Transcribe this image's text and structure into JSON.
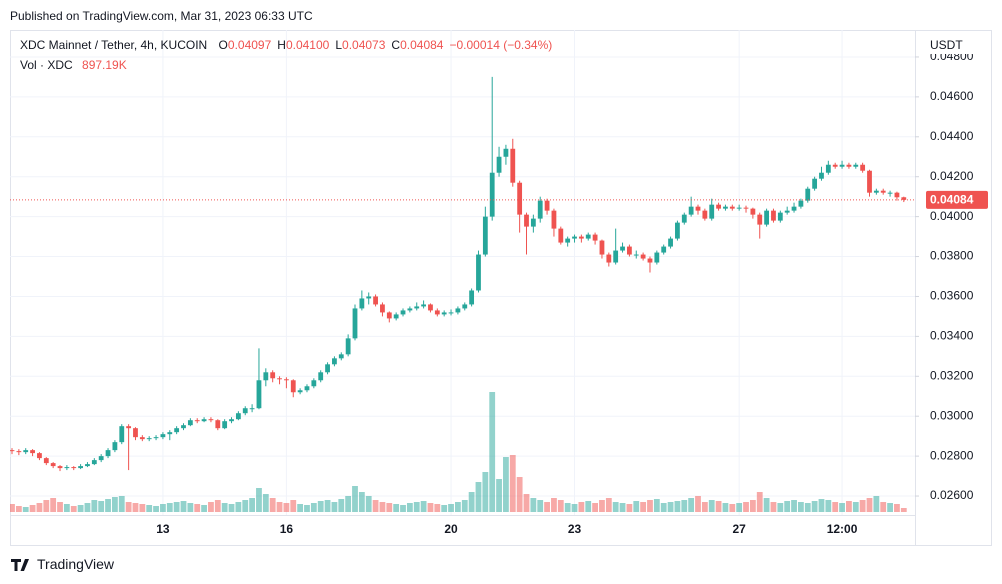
{
  "chart_data": {
    "type": "candlestick",
    "source": "Published on TradingView.com, Mar 31, 2023 06:33 UTC",
    "title": "XDC Mainnet / Tether, 4h, KUCOIN",
    "legend": [
      {
        "key": "O",
        "value": "0.04097"
      },
      {
        "key": "H",
        "value": "0.04100"
      },
      {
        "key": "L",
        "value": "0.04073"
      },
      {
        "key": "C",
        "value": "0.04084"
      }
    ],
    "change": "−0.00014 (−0.34%)",
    "currency": "USDT",
    "brand": "TradingView",
    "up_color": "#26a69a",
    "down_color": "#ef5350",
    "grid": true,
    "ylim": [
      0.0252,
      0.0488
    ],
    "yticks": [
      {
        "value": 0.026,
        "label": "0.02600"
      },
      {
        "value": 0.028,
        "label": "0.02800"
      },
      {
        "value": 0.03,
        "label": "0.03000"
      },
      {
        "value": 0.032,
        "label": "0.03200"
      },
      {
        "value": 0.034,
        "label": "0.03400"
      },
      {
        "value": 0.036,
        "label": "0.03600"
      },
      {
        "value": 0.038,
        "label": "0.03800"
      },
      {
        "value": 0.04,
        "label": "0.04000"
      },
      {
        "value": 0.042,
        "label": "0.04200"
      },
      {
        "value": 0.044,
        "label": "0.04400"
      },
      {
        "value": 0.046,
        "label": "0.04600"
      },
      {
        "value": 0.048,
        "label": "0.04800"
      }
    ],
    "categories": [
      null,
      null,
      null,
      null,
      null,
      null,
      null,
      null,
      null,
      null,
      null,
      null,
      null,
      null,
      null,
      null,
      null,
      null,
      null,
      null,
      null,
      null,
      "13",
      null,
      null,
      null,
      null,
      null,
      null,
      null,
      null,
      null,
      null,
      null,
      null,
      null,
      null,
      null,
      null,
      null,
      "16",
      null,
      null,
      null,
      null,
      null,
      null,
      null,
      null,
      null,
      null,
      null,
      null,
      null,
      null,
      null,
      null,
      null,
      null,
      null,
      null,
      null,
      null,
      null,
      "20",
      null,
      null,
      null,
      null,
      null,
      null,
      null,
      null,
      null,
      null,
      null,
      null,
      null,
      null,
      null,
      null,
      null,
      "23",
      null,
      null,
      null,
      null,
      null,
      null,
      null,
      null,
      null,
      null,
      null,
      null,
      null,
      null,
      null,
      null,
      null,
      null,
      null,
      null,
      null,
      null,
      null,
      "27",
      null,
      null,
      null,
      null,
      null,
      null,
      null,
      null,
      null,
      null,
      null,
      null,
      null,
      null,
      "12:00",
      null,
      null,
      null,
      null,
      null,
      null,
      null,
      null,
      null
    ],
    "open": [
      0.0283,
      0.02825,
      0.0282,
      0.0283,
      0.02815,
      0.0279,
      0.02765,
      0.0275,
      0.0274,
      0.02745,
      0.0274,
      0.0275,
      0.0276,
      0.0278,
      0.028,
      0.0283,
      0.0287,
      0.0295,
      0.0294,
      0.02895,
      0.02885,
      0.0289,
      0.02895,
      0.0291,
      0.0292,
      0.0294,
      0.02955,
      0.0298,
      0.02975,
      0.02985,
      0.0298,
      0.0294,
      0.02975,
      0.02985,
      0.03015,
      0.0304,
      0.0304,
      0.0318,
      0.0322,
      0.0319,
      0.03185,
      0.0318,
      0.0312,
      0.0313,
      0.0315,
      0.0318,
      0.0322,
      0.0326,
      0.0329,
      0.0331,
      0.0339,
      0.0354,
      0.0359,
      0.036,
      0.0356,
      0.0352,
      0.0349,
      0.0351,
      0.0353,
      0.0354,
      0.0355,
      0.0356,
      0.0353,
      0.0351,
      0.0352,
      0.0352,
      0.0354,
      0.0356,
      0.0363,
      0.0381,
      0.04,
      0.0422,
      0.043,
      0.0434,
      0.0417,
      0.0401,
      0.0395,
      0.0399,
      0.0408,
      0.0403,
      0.0394,
      0.0387,
      0.0389,
      0.039,
      0.0389,
      0.0391,
      0.0388,
      0.0381,
      0.0377,
      0.0383,
      0.0385,
      0.0381,
      0.0381,
      0.0379,
      0.0377,
      0.0382,
      0.0385,
      0.0389,
      0.0397,
      0.0401,
      0.0405,
      0.0403,
      0.0399,
      0.0406,
      0.0404,
      0.0405,
      0.0404,
      0.04045,
      0.0404,
      0.0401,
      0.0396,
      0.0403,
      0.0398,
      0.0402,
      0.0403,
      0.0405,
      0.0408,
      0.0414,
      0.0419,
      0.0422,
      0.0426,
      0.0425,
      0.0426,
      0.0425,
      0.0426,
      0.0423,
      0.0412,
      0.0413,
      0.0412,
      0.0412,
      0.04097
    ],
    "high": [
      0.0284,
      0.02835,
      0.0284,
      0.02835,
      0.0282,
      0.02795,
      0.0277,
      0.02755,
      0.02755,
      0.0275,
      0.0276,
      0.0277,
      0.0279,
      0.0281,
      0.0284,
      0.0288,
      0.0296,
      0.0296,
      0.02945,
      0.02905,
      0.029,
      0.02905,
      0.0292,
      0.0293,
      0.0295,
      0.02965,
      0.0299,
      0.0299,
      0.02995,
      0.02995,
      0.02985,
      0.02985,
      0.02995,
      0.03025,
      0.0305,
      0.0306,
      0.0334,
      0.0324,
      0.0323,
      0.032,
      0.03195,
      0.03185,
      0.0314,
      0.0316,
      0.0319,
      0.0323,
      0.0327,
      0.033,
      0.0332,
      0.0341,
      0.0356,
      0.0363,
      0.0362,
      0.0361,
      0.0357,
      0.03525,
      0.0352,
      0.0354,
      0.0355,
      0.0357,
      0.0358,
      0.03565,
      0.0354,
      0.0353,
      0.03535,
      0.0355,
      0.0357,
      0.0364,
      0.0383,
      0.0405,
      0.047,
      0.0435,
      0.0436,
      0.0439,
      0.0418,
      0.0402,
      0.0401,
      0.041,
      0.0409,
      0.0404,
      0.0395,
      0.039,
      0.0391,
      0.0391,
      0.0392,
      0.0392,
      0.03885,
      0.0382,
      0.0394,
      0.0387,
      0.0386,
      0.0383,
      0.0382,
      0.038,
      0.0383,
      0.0386,
      0.039,
      0.0398,
      0.0402,
      0.041,
      0.0406,
      0.0404,
      0.0409,
      0.0407,
      0.0406,
      0.0406,
      0.0406,
      0.04055,
      0.04045,
      0.0402,
      0.0404,
      0.0404,
      0.0403,
      0.0405,
      0.0407,
      0.0409,
      0.0415,
      0.042,
      0.0425,
      0.0428,
      0.0427,
      0.0428,
      0.0427,
      0.0427,
      0.0427,
      0.04235,
      0.0414,
      0.0414,
      0.0413,
      0.04125,
      0.041
    ],
    "low": [
      0.0281,
      0.02805,
      0.0281,
      0.028,
      0.0278,
      0.02755,
      0.0274,
      0.02725,
      0.0273,
      0.0273,
      0.02735,
      0.02745,
      0.02755,
      0.0277,
      0.0279,
      0.0282,
      0.0286,
      0.0273,
      0.0288,
      0.02875,
      0.02875,
      0.0288,
      0.02885,
      0.0288,
      0.0291,
      0.0293,
      0.0295,
      0.02965,
      0.0297,
      0.0297,
      0.0293,
      0.02935,
      0.02965,
      0.0298,
      0.03005,
      0.0302,
      0.03035,
      0.0315,
      0.0317,
      0.0316,
      0.0314,
      0.03095,
      0.0311,
      0.0312,
      0.0314,
      0.0317,
      0.0321,
      0.0325,
      0.0328,
      0.033,
      0.0338,
      0.0353,
      0.0356,
      0.0355,
      0.035,
      0.0347,
      0.0348,
      0.035,
      0.0352,
      0.0353,
      0.0354,
      0.0352,
      0.035,
      0.035,
      0.03505,
      0.0351,
      0.0353,
      0.0355,
      0.0362,
      0.038,
      0.0398,
      0.042,
      0.0426,
      0.0415,
      0.0392,
      0.0381,
      0.0392,
      0.0397,
      0.0401,
      0.039,
      0.0386,
      0.0385,
      0.0387,
      0.0387,
      0.0388,
      0.0386,
      0.0379,
      0.0375,
      0.0376,
      0.0382,
      0.038,
      0.0379,
      0.0378,
      0.0372,
      0.0376,
      0.0381,
      0.0384,
      0.0388,
      0.0396,
      0.04,
      0.0401,
      0.0398,
      0.0398,
      0.0403,
      0.0403,
      0.0403,
      0.0403,
      0.0402,
      0.0399,
      0.0389,
      0.0395,
      0.0397,
      0.0397,
      0.0401,
      0.0402,
      0.0404,
      0.0407,
      0.0413,
      0.0418,
      0.0421,
      0.0424,
      0.0424,
      0.0424,
      0.0424,
      0.0422,
      0.041,
      0.0411,
      0.0411,
      0.041,
      0.0408,
      0.04073
    ],
    "close": [
      0.02825,
      0.0282,
      0.0283,
      0.02815,
      0.0279,
      0.02765,
      0.0275,
      0.0274,
      0.02745,
      0.0274,
      0.0275,
      0.0276,
      0.0278,
      0.028,
      0.0283,
      0.0287,
      0.0295,
      0.0294,
      0.02895,
      0.02885,
      0.0289,
      0.02895,
      0.0291,
      0.0292,
      0.0294,
      0.02955,
      0.0298,
      0.02975,
      0.02985,
      0.0298,
      0.0294,
      0.02975,
      0.02985,
      0.03015,
      0.0304,
      0.0304,
      0.0318,
      0.0322,
      0.0319,
      0.03185,
      0.0318,
      0.0312,
      0.0313,
      0.0315,
      0.0318,
      0.0322,
      0.0326,
      0.0329,
      0.0331,
      0.0339,
      0.0354,
      0.0359,
      0.036,
      0.0356,
      0.0352,
      0.0349,
      0.0351,
      0.0353,
      0.0354,
      0.0355,
      0.0356,
      0.0353,
      0.0351,
      0.0352,
      0.0352,
      0.0354,
      0.0356,
      0.0363,
      0.0381,
      0.04,
      0.0422,
      0.043,
      0.0434,
      0.0417,
      0.0401,
      0.0395,
      0.0399,
      0.0408,
      0.0403,
      0.0394,
      0.0387,
      0.0389,
      0.039,
      0.0389,
      0.0391,
      0.0388,
      0.0381,
      0.0377,
      0.0383,
      0.0385,
      0.0381,
      0.0381,
      0.0379,
      0.0377,
      0.0382,
      0.0385,
      0.0389,
      0.0397,
      0.0401,
      0.0405,
      0.0403,
      0.0399,
      0.0406,
      0.0404,
      0.0405,
      0.0404,
      0.04045,
      0.0404,
      0.0401,
      0.0396,
      0.0403,
      0.0398,
      0.0402,
      0.0403,
      0.0405,
      0.0408,
      0.0414,
      0.0419,
      0.0422,
      0.0426,
      0.0425,
      0.0426,
      0.0425,
      0.0426,
      0.0423,
      0.0412,
      0.0413,
      0.0412,
      0.0412,
      0.04097,
      0.04084
    ],
    "volume": {
      "name": "Vol · XDC",
      "legend_value": "897.19K",
      "values": [
        1794400,
        1345800,
        1121500,
        1570100,
        2018700,
        2691600,
        3140200,
        2243000,
        1794400,
        1345800,
        1570100,
        2018700,
        2691600,
        2467300,
        2915900,
        3364500,
        3588800,
        2243000,
        2018700,
        1794400,
        1570100,
        1345800,
        1794400,
        2018700,
        2243000,
        2467300,
        2018700,
        1794400,
        1570100,
        2243000,
        2691600,
        2018700,
        1794400,
        2243000,
        2691600,
        3140200,
        5383200,
        4037400,
        3140200,
        2243000,
        2018700,
        2691600,
        1794400,
        1570100,
        2018700,
        2467300,
        2691600,
        2243000,
        2915900,
        3588800,
        5831800,
        4486000,
        3588800,
        2691600,
        2243000,
        2018700,
        1794400,
        1570100,
        2018700,
        2243000,
        2467300,
        2018700,
        1794400,
        1570100,
        1794400,
        2243000,
        2691600,
        4486000,
        6729000,
        8972000,
        26916000,
        7401900,
        12336500,
        12785100,
        7850500,
        4037400,
        3140200,
        2691600,
        2243000,
        3140200,
        2691600,
        2018700,
        1794400,
        2243000,
        2467300,
        2018700,
        2691600,
        3140200,
        2243000,
        2018700,
        1794400,
        2467300,
        2243000,
        2691600,
        2915900,
        2018700,
        2243000,
        2467300,
        2691600,
        3140200,
        3588800,
        2243000,
        2691600,
        2467300,
        2018700,
        1794400,
        2018700,
        2243000,
        2691600,
        4486000,
        3140200,
        2243000,
        2018700,
        2467300,
        2691600,
        2243000,
        2018700,
        2467300,
        2915900,
        2691600,
        2243000,
        2018700,
        2467300,
        2243000,
        2691600,
        3140200,
        3588800,
        2243000,
        2018700,
        1794400,
        897190
      ]
    }
  }
}
